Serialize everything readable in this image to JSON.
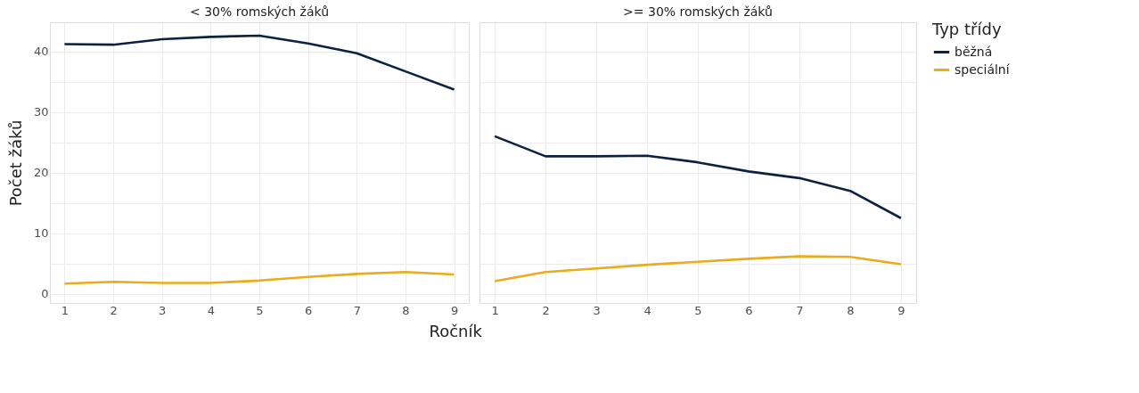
{
  "chart_data": [
    {
      "type": "line",
      "title": "< 30% romských žáků",
      "xlabel": "Ročník",
      "ylabel": "Počet žáků",
      "x": [
        1,
        2,
        3,
        4,
        5,
        6,
        7,
        8,
        9
      ],
      "xlim": [
        0.7,
        9.3
      ],
      "xticks": [
        1,
        2,
        3,
        4,
        5,
        6,
        7,
        8,
        9
      ],
      "ylim": [
        -1.5,
        44.8
      ],
      "yticks": [
        0,
        {
          "value": 5,
          "label": null
        },
        10,
        {
          "value": 15,
          "label": null
        },
        20,
        {
          "value": 25,
          "label": null
        },
        30,
        {
          "value": 35,
          "label": null
        },
        40
      ],
      "grid": true,
      "line_style": "solid",
      "series": [
        {
          "color": "#0d2240",
          "values": [
            41.2,
            41.1,
            42.0,
            42.4,
            42.6,
            41.3,
            39.7,
            36.7,
            33.7
          ]
        },
        {
          "color": "#e8ac1c",
          "values": [
            1.7,
            2.0,
            1.8,
            1.8,
            2.2,
            2.8,
            3.3,
            3.6,
            3.2
          ]
        }
      ]
    },
    {
      "type": "line",
      "title": ">= 30% romských žáků",
      "legend_title": "Typ třídy",
      "legend": "right",
      "tick_labels": "x",
      "x": [
        1,
        2,
        3,
        4,
        5,
        6,
        7,
        8,
        9
      ],
      "xlim": [
        0.7,
        9.3
      ],
      "xticks": [
        1,
        2,
        3,
        4,
        5,
        6,
        7,
        8,
        9
      ],
      "ylim": [
        -1.5,
        44.8
      ],
      "yticks": [
        0,
        {
          "value": 5,
          "label": null
        },
        10,
        {
          "value": 15,
          "label": null
        },
        20,
        {
          "value": 25,
          "label": null
        },
        30,
        {
          "value": 35,
          "label": null
        },
        40
      ],
      "grid": true,
      "line_style": "solid",
      "series": [
        {
          "name": "běžná",
          "color": "#0d2240",
          "values": [
            26.0,
            22.7,
            22.7,
            22.8,
            21.7,
            20.2,
            19.1,
            17.0,
            12.5
          ]
        },
        {
          "name": "speciální",
          "color": "#e8ac1c",
          "values": [
            2.1,
            3.6,
            4.2,
            4.8,
            5.3,
            5.8,
            6.2,
            6.1,
            4.9
          ]
        }
      ]
    }
  ]
}
